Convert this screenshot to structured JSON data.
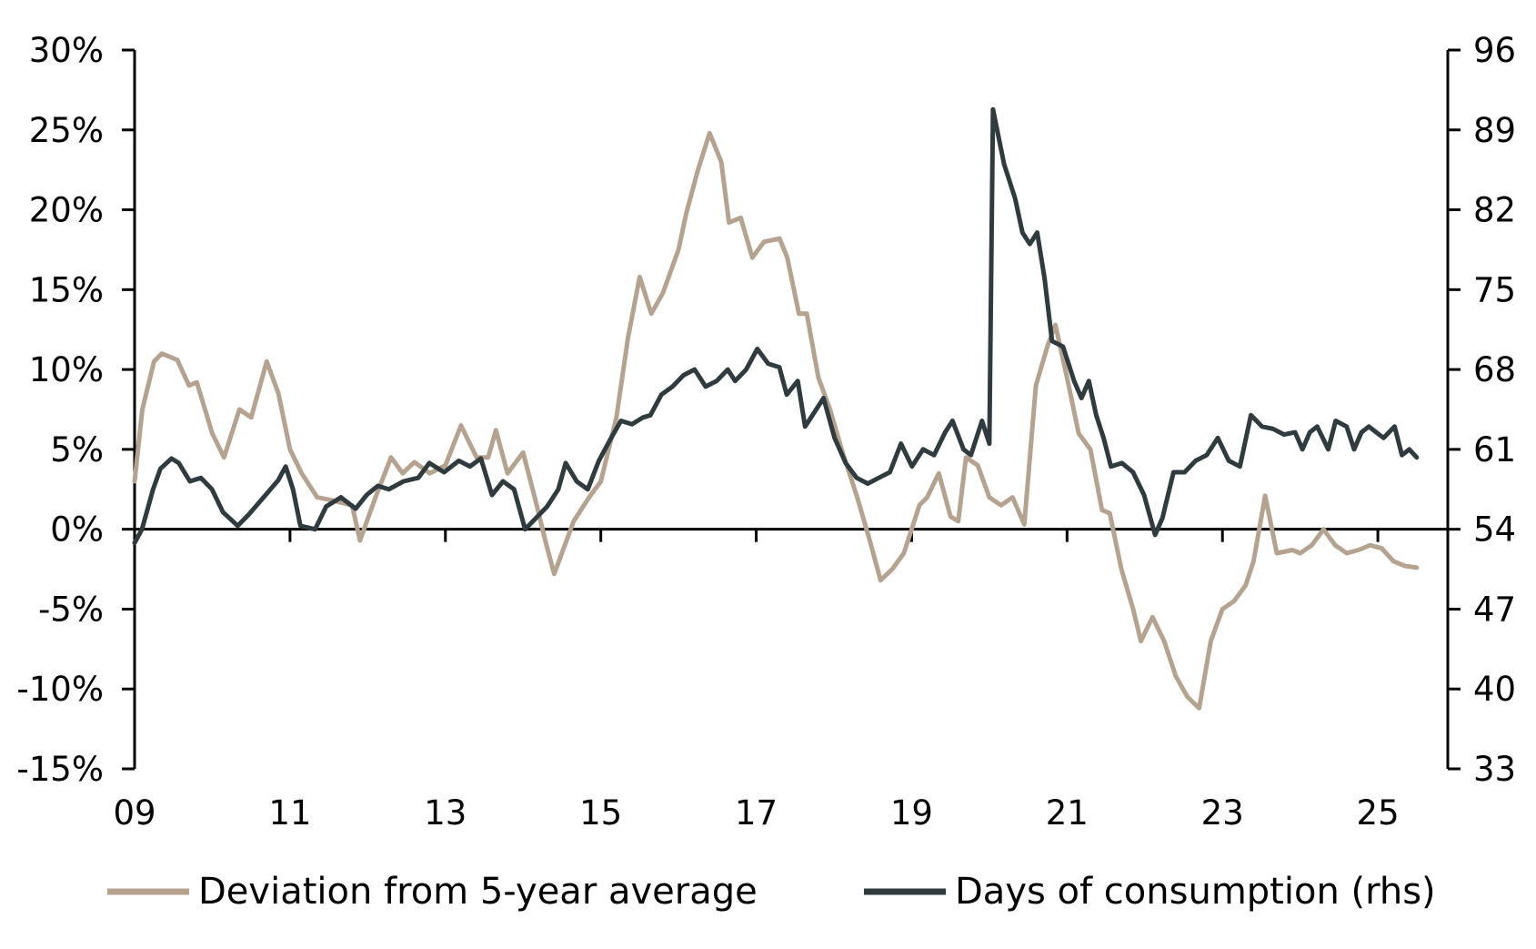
{
  "chart_data": {
    "type": "line",
    "x_ticks": [
      "09",
      "11",
      "13",
      "15",
      "17",
      "19",
      "21",
      "23",
      "25"
    ],
    "x_range": [
      2009,
      2025.9
    ],
    "y_left": {
      "ticks": [
        "30%",
        "25%",
        "20%",
        "15%",
        "10%",
        "5%",
        "0%",
        "-5%",
        "-10%",
        "-15%"
      ],
      "range": [
        -15,
        30
      ]
    },
    "y_right": {
      "ticks": [
        "96",
        "89",
        "82",
        "75",
        "68",
        "61",
        "54",
        "47",
        "40",
        "33"
      ],
      "range": [
        33,
        96
      ]
    },
    "grid": false,
    "legend_position": "bottom",
    "series": [
      {
        "name": "Deviation from 5-year average",
        "axis": "left",
        "color": "#b5a390",
        "points": [
          [
            2009.0,
            3.0
          ],
          [
            2009.1,
            7.5
          ],
          [
            2009.25,
            10.5
          ],
          [
            2009.35,
            11.0
          ],
          [
            2009.55,
            10.6
          ],
          [
            2009.7,
            9.0
          ],
          [
            2009.8,
            9.2
          ],
          [
            2010.0,
            6.0
          ],
          [
            2010.15,
            4.5
          ],
          [
            2010.35,
            7.5
          ],
          [
            2010.5,
            7.0
          ],
          [
            2010.7,
            10.5
          ],
          [
            2010.85,
            8.5
          ],
          [
            2011.0,
            5.0
          ],
          [
            2011.15,
            3.5
          ],
          [
            2011.35,
            2.0
          ],
          [
            2011.55,
            1.8
          ],
          [
            2011.8,
            1.5
          ],
          [
            2011.9,
            -0.7
          ],
          [
            2012.1,
            2.0
          ],
          [
            2012.3,
            4.5
          ],
          [
            2012.45,
            3.5
          ],
          [
            2012.6,
            4.2
          ],
          [
            2012.8,
            3.5
          ],
          [
            2013.0,
            4.0
          ],
          [
            2013.2,
            6.5
          ],
          [
            2013.4,
            4.5
          ],
          [
            2013.55,
            4.5
          ],
          [
            2013.65,
            6.2
          ],
          [
            2013.8,
            3.5
          ],
          [
            2014.0,
            4.8
          ],
          [
            2014.15,
            2.0
          ],
          [
            2014.3,
            -1.0
          ],
          [
            2014.4,
            -2.8
          ],
          [
            2014.65,
            0.5
          ],
          [
            2014.85,
            2.0
          ],
          [
            2015.0,
            3.0
          ],
          [
            2015.2,
            7.0
          ],
          [
            2015.35,
            12.0
          ],
          [
            2015.5,
            15.8
          ],
          [
            2015.65,
            13.5
          ],
          [
            2015.8,
            14.8
          ],
          [
            2016.0,
            17.5
          ],
          [
            2016.1,
            19.8
          ],
          [
            2016.25,
            22.5
          ],
          [
            2016.4,
            24.8
          ],
          [
            2016.55,
            23.0
          ],
          [
            2016.65,
            19.2
          ],
          [
            2016.8,
            19.5
          ],
          [
            2016.95,
            17.0
          ],
          [
            2017.1,
            18.0
          ],
          [
            2017.3,
            18.2
          ],
          [
            2017.4,
            17.0
          ],
          [
            2017.55,
            13.5
          ],
          [
            2017.65,
            13.5
          ],
          [
            2017.8,
            9.5
          ],
          [
            2017.95,
            7.5
          ],
          [
            2018.1,
            5.0
          ],
          [
            2018.3,
            2.0
          ],
          [
            2018.45,
            -0.5
          ],
          [
            2018.6,
            -3.2
          ],
          [
            2018.75,
            -2.5
          ],
          [
            2018.9,
            -1.5
          ],
          [
            2019.1,
            1.5
          ],
          [
            2019.2,
            2.0
          ],
          [
            2019.35,
            3.5
          ],
          [
            2019.5,
            0.8
          ],
          [
            2019.6,
            0.5
          ],
          [
            2019.7,
            4.5
          ],
          [
            2019.85,
            4.0
          ],
          [
            2020.0,
            2.0
          ],
          [
            2020.15,
            1.5
          ],
          [
            2020.3,
            2.0
          ],
          [
            2020.45,
            0.3
          ],
          [
            2020.6,
            9.0
          ],
          [
            2020.75,
            11.5
          ],
          [
            2020.85,
            12.8
          ],
          [
            2021.0,
            9.5
          ],
          [
            2021.15,
            6.0
          ],
          [
            2021.3,
            5.0
          ],
          [
            2021.45,
            1.2
          ],
          [
            2021.55,
            1.0
          ],
          [
            2021.7,
            -2.5
          ],
          [
            2021.85,
            -5.0
          ],
          [
            2021.95,
            -7.0
          ],
          [
            2022.1,
            -5.5
          ],
          [
            2022.25,
            -7.0
          ],
          [
            2022.4,
            -9.2
          ],
          [
            2022.55,
            -10.5
          ],
          [
            2022.7,
            -11.2
          ],
          [
            2022.85,
            -7.0
          ],
          [
            2023.0,
            -5.0
          ],
          [
            2023.15,
            -4.5
          ],
          [
            2023.3,
            -3.5
          ],
          [
            2023.4,
            -2.0
          ],
          [
            2023.55,
            2.1
          ],
          [
            2023.7,
            -1.5
          ],
          [
            2023.9,
            -1.3
          ],
          [
            2024.0,
            -1.5
          ],
          [
            2024.15,
            -1.0
          ],
          [
            2024.3,
            0.0
          ],
          [
            2024.45,
            -1.0
          ],
          [
            2024.6,
            -1.5
          ],
          [
            2024.75,
            -1.3
          ],
          [
            2024.9,
            -1.0
          ],
          [
            2025.05,
            -1.2
          ],
          [
            2025.2,
            -2.0
          ],
          [
            2025.35,
            -2.3
          ],
          [
            2025.5,
            -2.4
          ]
        ]
      },
      {
        "name": "Days of consumption (rhs)",
        "axis": "right",
        "color": "#2f3b3e",
        "points": [
          [
            2009.0,
            52.8
          ],
          [
            2009.1,
            54.0
          ],
          [
            2009.25,
            57.5
          ],
          [
            2009.35,
            59.3
          ],
          [
            2009.5,
            60.2
          ],
          [
            2009.6,
            59.8
          ],
          [
            2009.75,
            58.2
          ],
          [
            2009.9,
            58.5
          ],
          [
            2010.05,
            57.5
          ],
          [
            2010.2,
            55.5
          ],
          [
            2010.4,
            54.3
          ],
          [
            2010.55,
            55.3
          ],
          [
            2010.75,
            56.8
          ],
          [
            2010.95,
            58.3
          ],
          [
            2011.05,
            59.5
          ],
          [
            2011.15,
            57.5
          ],
          [
            2011.25,
            54.3
          ],
          [
            2011.45,
            54.0
          ],
          [
            2011.6,
            56.0
          ],
          [
            2011.8,
            56.8
          ],
          [
            2012.0,
            55.8
          ],
          [
            2012.15,
            57.0
          ],
          [
            2012.3,
            57.8
          ],
          [
            2012.45,
            57.5
          ],
          [
            2012.65,
            58.2
          ],
          [
            2012.85,
            58.5
          ],
          [
            2013.0,
            59.8
          ],
          [
            2013.2,
            59.0
          ],
          [
            2013.4,
            60.0
          ],
          [
            2013.55,
            59.5
          ],
          [
            2013.7,
            60.2
          ],
          [
            2013.85,
            57.0
          ],
          [
            2014.0,
            58.2
          ],
          [
            2014.15,
            57.5
          ],
          [
            2014.3,
            54.0
          ],
          [
            2014.45,
            55.0
          ],
          [
            2014.6,
            56.0
          ],
          [
            2014.75,
            57.5
          ],
          [
            2014.85,
            59.8
          ],
          [
            2015.0,
            58.2
          ],
          [
            2015.15,
            57.5
          ],
          [
            2015.3,
            60.0
          ],
          [
            2015.45,
            61.8
          ],
          [
            2015.6,
            63.5
          ],
          [
            2015.75,
            63.2
          ],
          [
            2015.9,
            63.8
          ],
          [
            2016.0,
            64.0
          ],
          [
            2016.15,
            65.8
          ],
          [
            2016.3,
            66.5
          ],
          [
            2016.45,
            67.5
          ],
          [
            2016.6,
            68.0
          ],
          [
            2016.75,
            66.5
          ],
          [
            2016.9,
            67.0
          ],
          [
            2017.05,
            68.0
          ],
          [
            2017.15,
            67.0
          ],
          [
            2017.3,
            68.0
          ],
          [
            2017.45,
            69.8
          ],
          [
            2017.6,
            68.5
          ],
          [
            2017.75,
            68.2
          ],
          [
            2017.85,
            65.8
          ],
          [
            2018.0,
            67.0
          ],
          [
            2018.1,
            63.0
          ],
          [
            2018.25,
            64.5
          ],
          [
            2018.35,
            65.5
          ],
          [
            2018.5,
            62.0
          ],
          [
            2018.65,
            59.8
          ],
          [
            2018.8,
            58.5
          ],
          [
            2018.95,
            58.0
          ],
          [
            2019.1,
            58.5
          ],
          [
            2019.25,
            59.0
          ],
          [
            2019.4,
            61.5
          ],
          [
            2019.55,
            59.5
          ],
          [
            2019.7,
            61.0
          ],
          [
            2019.85,
            60.5
          ],
          [
            2020.0,
            62.5
          ],
          [
            2020.1,
            63.5
          ],
          [
            2020.25,
            61.0
          ],
          [
            2020.35,
            60.5
          ],
          [
            2020.5,
            63.5
          ],
          [
            2020.6,
            61.5
          ],
          [
            2020.65,
            90.8
          ],
          [
            2020.8,
            86.0
          ],
          [
            2020.95,
            83.0
          ],
          [
            2021.05,
            80.0
          ],
          [
            2021.15,
            79.0
          ],
          [
            2021.25,
            80.0
          ],
          [
            2021.35,
            76.0
          ],
          [
            2021.45,
            70.5
          ],
          [
            2021.6,
            70.0
          ],
          [
            2021.75,
            67.0
          ],
          [
            2021.85,
            65.5
          ],
          [
            2021.95,
            67.0
          ],
          [
            2022.05,
            64.0
          ],
          [
            2022.15,
            62.0
          ],
          [
            2022.25,
            59.5
          ],
          [
            2022.4,
            59.8
          ],
          [
            2022.55,
            59.0
          ],
          [
            2022.7,
            57.0
          ],
          [
            2022.85,
            53.5
          ],
          [
            2022.95,
            55.0
          ],
          [
            2023.1,
            59.0
          ],
          [
            2023.25,
            59.0
          ],
          [
            2023.4,
            60.0
          ],
          [
            2023.55,
            60.5
          ],
          [
            2023.7,
            62.0
          ],
          [
            2023.85,
            60.0
          ],
          [
            2024.0,
            59.5
          ],
          [
            2024.15,
            64.0
          ],
          [
            2024.3,
            63.0
          ],
          [
            2024.45,
            62.8
          ],
          [
            2024.6,
            62.3
          ],
          [
            2024.75,
            62.5
          ],
          [
            2024.85,
            61.0
          ],
          [
            2024.95,
            62.5
          ],
          [
            2025.05,
            63.0
          ],
          [
            2025.2,
            61.0
          ],
          [
            2025.3,
            63.5
          ],
          [
            2025.45,
            63.0
          ],
          [
            2025.55,
            61.0
          ],
          [
            2025.65,
            62.5
          ],
          [
            2025.75,
            63.0
          ],
          [
            2025.85,
            62.5
          ],
          [
            2025.95,
            62.0
          ],
          [
            2026.1,
            63.0
          ],
          [
            2026.2,
            60.5
          ],
          [
            2026.3,
            61.0
          ],
          [
            2026.4,
            60.3
          ]
        ]
      }
    ]
  }
}
